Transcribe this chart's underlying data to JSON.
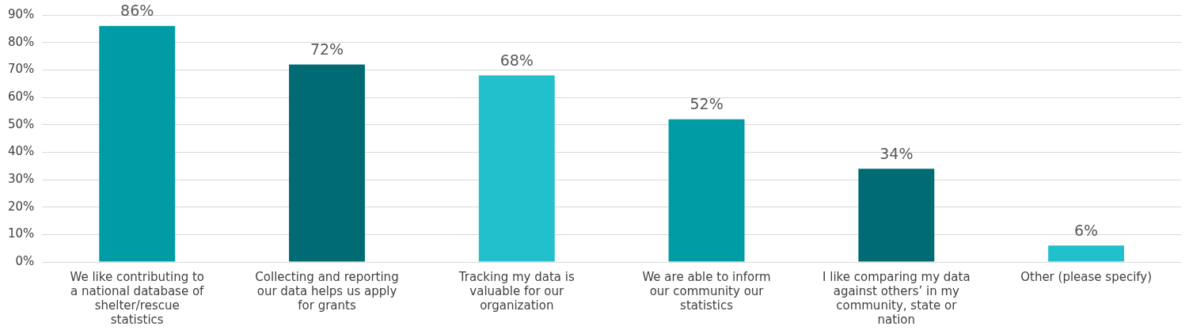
{
  "chart_data": {
    "type": "bar",
    "categories": [
      "We like contributing to a national database of shelter/rescue statistics",
      "Collecting and reporting our data helps us apply for grants",
      "Tracking my data is valuable for our organization",
      "We are able to inform our community our statistics",
      "I like comparing my data against others’ in my community, state or nation",
      "Other (please specify)"
    ],
    "values": [
      86,
      72,
      68,
      52,
      34,
      6
    ],
    "colors": [
      "#009ca6",
      "#006b73",
      "#22c0cc",
      "#009ca6",
      "#006b73",
      "#22c0cc"
    ],
    "value_labels": [
      "86%",
      "72%",
      "68%",
      "52%",
      "34%",
      "6%"
    ],
    "ylim": [
      0,
      90
    ],
    "yticks": [
      {
        "value": 0,
        "label": "0%"
      },
      {
        "value": 10,
        "label": "10%"
      },
      {
        "value": 20,
        "label": "20%"
      },
      {
        "value": 30,
        "label": "30%"
      },
      {
        "value": 40,
        "label": "40%"
      },
      {
        "value": 50,
        "label": "50%"
      },
      {
        "value": 60,
        "label": "60%"
      },
      {
        "value": 70,
        "label": "70%"
      },
      {
        "value": 80,
        "label": "80%"
      },
      {
        "value": 90,
        "label": "90%"
      }
    ],
    "grid": "y"
  }
}
